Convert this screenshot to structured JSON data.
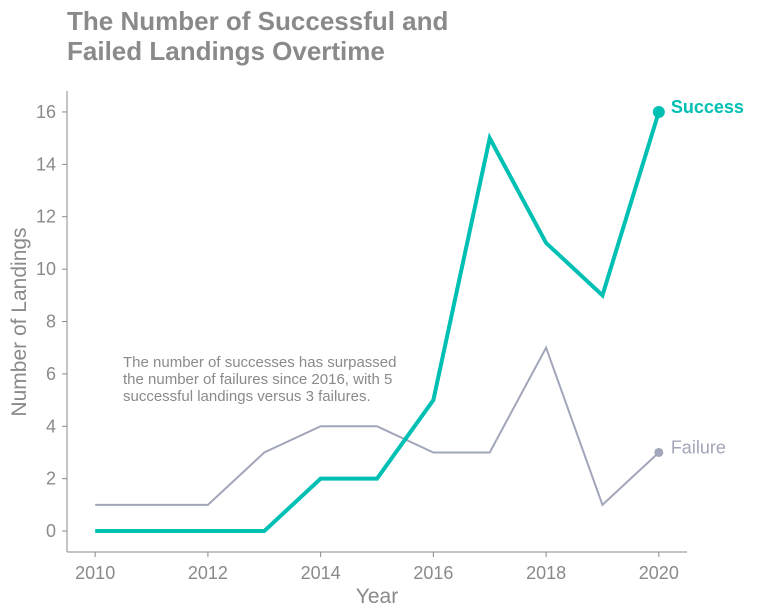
{
  "chart_data": {
    "type": "line",
    "title_lines": [
      "The Number of Successful and",
      "Failed Landings Overtime"
    ],
    "xlabel": "Year",
    "ylabel": "Number of Landings",
    "x": [
      2010,
      2011,
      2012,
      2013,
      2014,
      2015,
      2016,
      2017,
      2018,
      2019,
      2020
    ],
    "xlim": [
      2009.5,
      2020.5
    ],
    "ylim": [
      -0.8,
      16.8
    ],
    "xticks": [
      2010,
      2012,
      2014,
      2016,
      2018,
      2020
    ],
    "yticks": [
      0,
      2,
      4,
      6,
      8,
      10,
      12,
      14,
      16
    ],
    "series": [
      {
        "name": "Success",
        "color": "#00bfb3",
        "values": [
          0,
          0,
          0,
          0,
          2,
          2,
          5,
          15,
          11,
          9,
          16
        ]
      },
      {
        "name": "Failure",
        "color": "#a2a6ba",
        "values": [
          1,
          1,
          1,
          3,
          4,
          4,
          3,
          3,
          7,
          1,
          3
        ]
      }
    ],
    "annotation_lines": [
      "The number of successes has surpassed",
      "the number of failures since 2016, with 5",
      "successful landings versus 3 failures."
    ],
    "grid": false,
    "legend": "direct labels at line ends"
  }
}
